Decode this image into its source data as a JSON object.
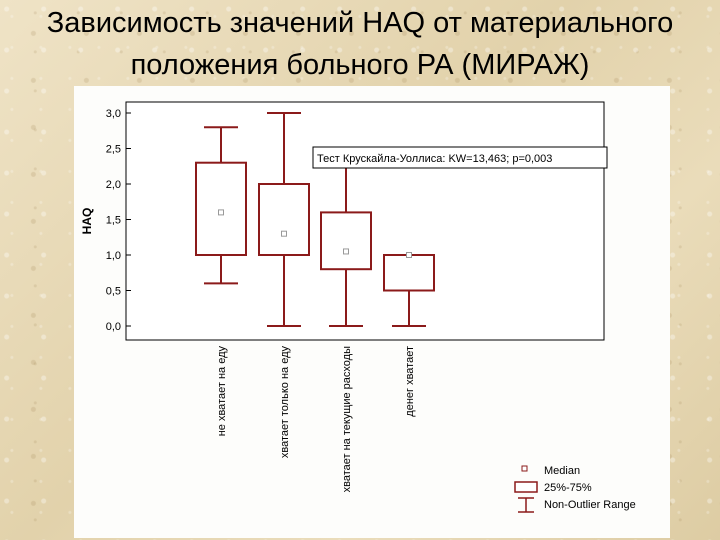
{
  "slide": {
    "title_line1": "Зависимость значений HAQ от материального",
    "title_line2": "положения больного РА (МИРАЖ)"
  },
  "chart_data": {
    "type": "boxplot",
    "ylabel": "HAQ",
    "ylim": [
      0,
      3.0
    ],
    "yticks": [
      "0,0",
      "0,5",
      "1,0",
      "1,5",
      "2,0",
      "2,5",
      "3,0"
    ],
    "categories": [
      "не хватает на еду",
      "хватает только на еду",
      "хватает на текущие расходы",
      "денег хватает"
    ],
    "boxes": [
      {
        "median": 1.6,
        "q1": 1.0,
        "q3": 2.3,
        "min": 0.6,
        "max": 2.8
      },
      {
        "median": 1.3,
        "q1": 1.0,
        "q3": 2.0,
        "min": 0.0,
        "max": 3.0
      },
      {
        "median": 1.05,
        "q1": 0.8,
        "q3": 1.6,
        "min": 0.0,
        "max": 2.3
      },
      {
        "median": 1.0,
        "q1": 0.5,
        "q3": 1.0,
        "min": 0.0,
        "max": 1.0
      }
    ],
    "annotation": "Тест Крускайла-Уоллиса: KW=13,463; p=0,003",
    "legend": [
      "Median",
      "25%-75%",
      "Non-Outlier Range"
    ],
    "legend_position": "bottom-right",
    "box_color": "#8b1a1a",
    "grid": false
  }
}
